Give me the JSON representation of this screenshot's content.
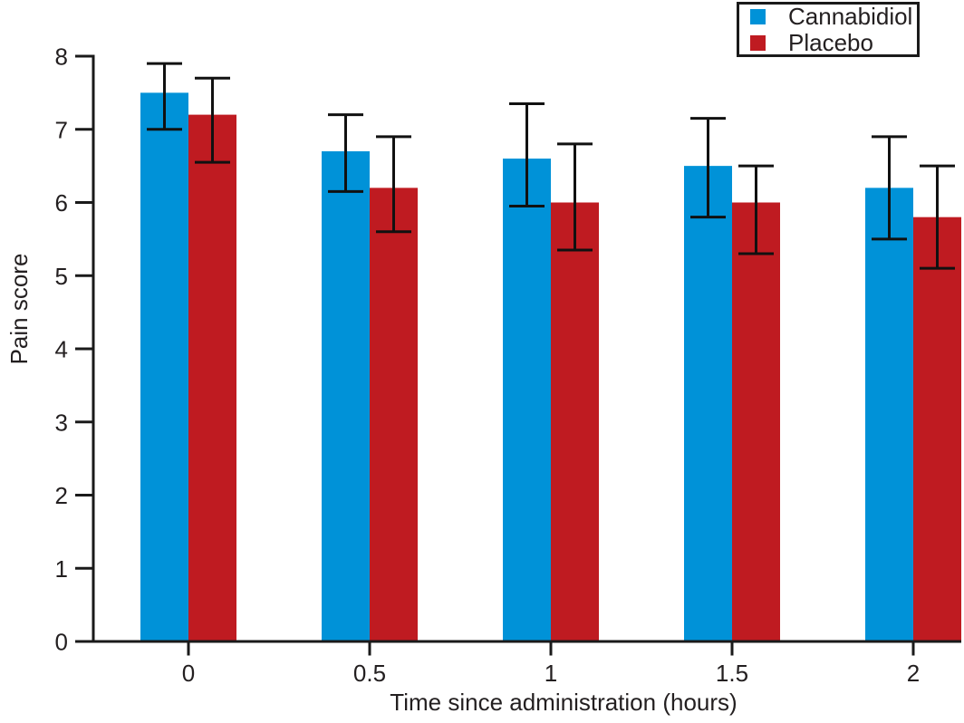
{
  "chart_data": {
    "type": "bar",
    "title": "",
    "xlabel": "Time since administration (hours)",
    "ylabel": "Pain score",
    "categories": [
      "0",
      "0.5",
      "1",
      "1.5",
      "2"
    ],
    "series": [
      {
        "name": "Cannabidiol",
        "color": "#0092d8",
        "values": [
          7.5,
          6.7,
          6.6,
          6.5,
          6.2
        ],
        "error_low": [
          7.0,
          6.15,
          5.95,
          5.8,
          5.5
        ],
        "error_high": [
          7.9,
          7.2,
          7.35,
          7.15,
          6.9
        ]
      },
      {
        "name": "Placebo",
        "color": "#bf1b21",
        "values": [
          7.2,
          6.2,
          6.0,
          6.0,
          5.8
        ],
        "error_low": [
          6.55,
          5.6,
          5.35,
          5.3,
          5.1
        ],
        "error_high": [
          7.7,
          6.9,
          6.8,
          6.5,
          6.5
        ]
      }
    ],
    "ylim": [
      0,
      8
    ],
    "yticks": [
      0,
      1,
      2,
      3,
      4,
      5,
      6,
      7,
      8
    ],
    "grid": false,
    "error_bars": true,
    "legend_position": "top-right",
    "axis_color": "#1a1a1a",
    "error_bar_color": "#111111",
    "text_color": "#231f20"
  }
}
